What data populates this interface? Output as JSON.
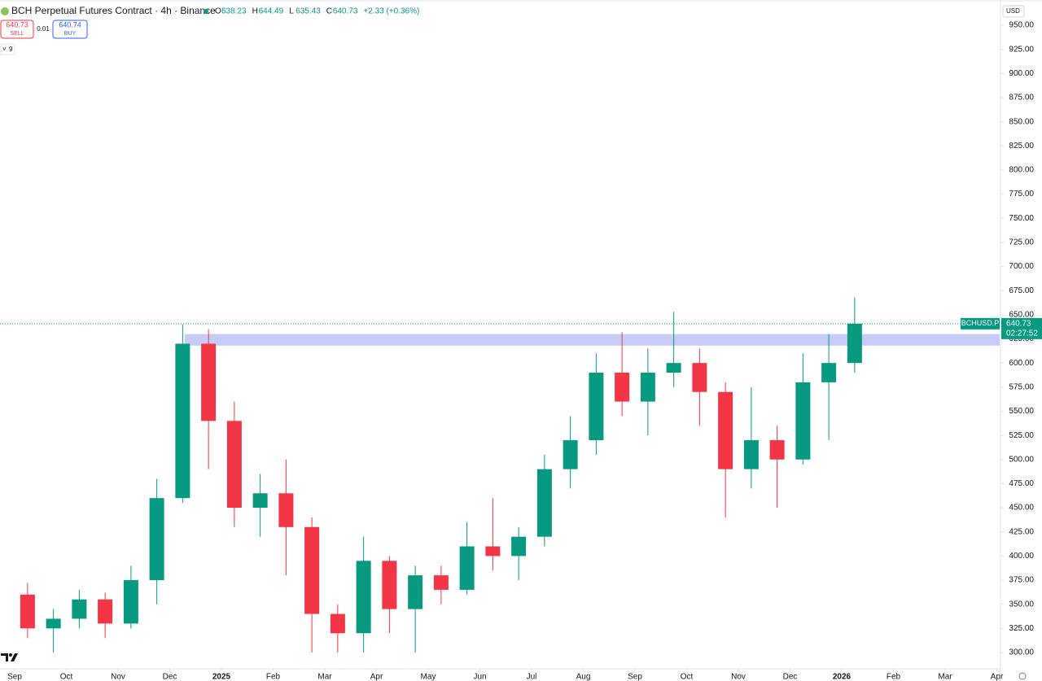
{
  "chart_data": {
    "type": "candlestick",
    "title": "BCH Perpetual Futures Contract · 4h · Binance",
    "ohlc": [
      {
        "label": "O",
        "value": "638.23"
      },
      {
        "label": "H",
        "value": "644.49"
      },
      {
        "label": "L",
        "value": "635.43"
      },
      {
        "label": "C",
        "value": "640.73"
      }
    ],
    "change": "+2.33 (+0.36%)",
    "sell": {
      "price": "640.73",
      "label": "SELL"
    },
    "spread": "0.01",
    "buy": {
      "price": "640.74",
      "label": "BUY"
    },
    "indicator_count": "9",
    "currency": "USD",
    "symbol": "BCHUSD.P",
    "last_price": 640.73,
    "countdown": "02:27:52",
    "zone": [
      618,
      630
    ],
    "up_color": "#089981",
    "down_color": "#f23645",
    "zone_color": "#c7ccf7",
    "ylim": [
      300,
      950
    ],
    "yticks": [
      {
        "value": 300,
        "label": "300.00"
      },
      {
        "value": 325,
        "label": "325.00"
      },
      {
        "value": 350,
        "label": "350.00"
      },
      {
        "value": 375,
        "label": "375.00"
      },
      {
        "value": 400,
        "label": "400.00"
      },
      {
        "value": 425,
        "label": "425.00"
      },
      {
        "value": 450,
        "label": "450.00"
      },
      {
        "value": 475,
        "label": "475.00"
      },
      {
        "value": 500,
        "label": "500.00"
      },
      {
        "value": 525,
        "label": "525.00"
      },
      {
        "value": 550,
        "label": "550.00"
      },
      {
        "value": 575,
        "label": "575.00"
      },
      {
        "value": 600,
        "label": "600.00"
      },
      {
        "value": 625,
        "label": "625.00"
      },
      {
        "value": 650,
        "label": "650.00"
      },
      {
        "value": 675,
        "label": "675.00"
      },
      {
        "value": 700,
        "label": "700.00"
      },
      {
        "value": 725,
        "label": "725.00"
      },
      {
        "value": 750,
        "label": "750.00"
      },
      {
        "value": 775,
        "label": "775.00"
      },
      {
        "value": 800,
        "label": "800.00"
      },
      {
        "value": 825,
        "label": "825.00"
      },
      {
        "value": 850,
        "label": "850.00"
      },
      {
        "value": 875,
        "label": "875.00"
      },
      {
        "value": 900,
        "label": "900.00"
      },
      {
        "value": 925,
        "label": "925.00"
      },
      {
        "value": 950,
        "label": "950.00"
      }
    ],
    "xticks": [
      {
        "value": "2024-09",
        "label": "Sep"
      },
      {
        "value": "2024-10",
        "label": "Oct"
      },
      {
        "value": "2024-11",
        "label": "Nov"
      },
      {
        "value": "2024-12",
        "label": "Dec"
      },
      {
        "value": "2025-01",
        "label": "2025"
      },
      {
        "value": "2025-02",
        "label": "Feb"
      },
      {
        "value": "2025-03",
        "label": "Mar"
      },
      {
        "value": "2025-04",
        "label": "Apr"
      },
      {
        "value": "2025-05",
        "label": "May"
      },
      {
        "value": "2025-06",
        "label": "Jun"
      },
      {
        "value": "2025-07",
        "label": "Jul"
      },
      {
        "value": "2025-08",
        "label": "Aug"
      },
      {
        "value": "2025-09",
        "label": "Sep"
      },
      {
        "value": "2025-10",
        "label": "Oct"
      },
      {
        "value": "2025-11",
        "label": "Nov"
      },
      {
        "value": "2025-12",
        "label": "Dec"
      },
      {
        "value": "2026-01",
        "label": "2026"
      },
      {
        "value": "2026-02",
        "label": "Feb"
      },
      {
        "value": "2026-03",
        "label": "Mar"
      },
      {
        "value": "2026-04",
        "label": "Apr"
      }
    ],
    "candles": [
      {
        "x": "2024-09",
        "open": 360,
        "high": 372,
        "low": 315,
        "close": 325
      },
      {
        "x": "2024-09",
        "open": 325,
        "high": 345,
        "low": 300,
        "close": 335
      },
      {
        "x": "2024-10",
        "open": 335,
        "high": 365,
        "low": 325,
        "close": 355
      },
      {
        "x": "2024-10",
        "open": 355,
        "high": 362,
        "low": 315,
        "close": 330
      },
      {
        "x": "2024-11",
        "open": 330,
        "high": 390,
        "low": 325,
        "close": 375
      },
      {
        "x": "2024-11",
        "open": 375,
        "high": 480,
        "low": 350,
        "close": 460
      },
      {
        "x": "2024-12",
        "open": 460,
        "high": 640,
        "low": 455,
        "close": 620
      },
      {
        "x": "2024-12",
        "open": 620,
        "high": 635,
        "low": 490,
        "close": 540
      },
      {
        "x": "2025-01",
        "open": 540,
        "high": 560,
        "low": 430,
        "close": 450
      },
      {
        "x": "2025-01",
        "open": 450,
        "high": 485,
        "low": 420,
        "close": 465
      },
      {
        "x": "2025-02",
        "open": 465,
        "high": 500,
        "low": 380,
        "close": 430
      },
      {
        "x": "2025-02",
        "open": 430,
        "high": 440,
        "low": 300,
        "close": 340
      },
      {
        "x": "2025-03",
        "open": 340,
        "high": 350,
        "low": 300,
        "close": 320
      },
      {
        "x": "2025-03",
        "open": 320,
        "high": 420,
        "low": 300,
        "close": 395
      },
      {
        "x": "2025-04",
        "open": 395,
        "high": 400,
        "low": 320,
        "close": 345
      },
      {
        "x": "2025-04",
        "open": 345,
        "high": 390,
        "low": 300,
        "close": 380
      },
      {
        "x": "2025-05",
        "open": 380,
        "high": 390,
        "low": 350,
        "close": 365
      },
      {
        "x": "2025-05",
        "open": 365,
        "high": 435,
        "low": 360,
        "close": 410
      },
      {
        "x": "2025-06",
        "open": 410,
        "high": 460,
        "low": 385,
        "close": 400
      },
      {
        "x": "2025-06",
        "open": 400,
        "high": 430,
        "low": 375,
        "close": 420
      },
      {
        "x": "2025-07",
        "open": 420,
        "high": 505,
        "low": 410,
        "close": 490
      },
      {
        "x": "2025-07",
        "open": 490,
        "high": 545,
        "low": 470,
        "close": 520
      },
      {
        "x": "2025-08",
        "open": 520,
        "high": 610,
        "low": 505,
        "close": 590
      },
      {
        "x": "2025-08",
        "open": 590,
        "high": 632,
        "low": 545,
        "close": 560
      },
      {
        "x": "2025-09",
        "open": 560,
        "high": 615,
        "low": 525,
        "close": 590
      },
      {
        "x": "2025-09",
        "open": 590,
        "high": 653,
        "low": 575,
        "close": 600
      },
      {
        "x": "2025-10",
        "open": 600,
        "high": 615,
        "low": 535,
        "close": 570
      },
      {
        "x": "2025-10",
        "open": 570,
        "high": 580,
        "low": 440,
        "close": 490
      },
      {
        "x": "2025-11",
        "open": 490,
        "high": 575,
        "low": 470,
        "close": 520
      },
      {
        "x": "2025-11",
        "open": 520,
        "high": 535,
        "low": 450,
        "close": 500
      },
      {
        "x": "2025-12",
        "open": 500,
        "high": 610,
        "low": 495,
        "close": 580
      },
      {
        "x": "2025-12",
        "open": 580,
        "high": 630,
        "low": 520,
        "close": 600
      },
      {
        "x": "2026-01",
        "open": 600,
        "high": 668,
        "low": 590,
        "close": 640.73
      }
    ]
  }
}
